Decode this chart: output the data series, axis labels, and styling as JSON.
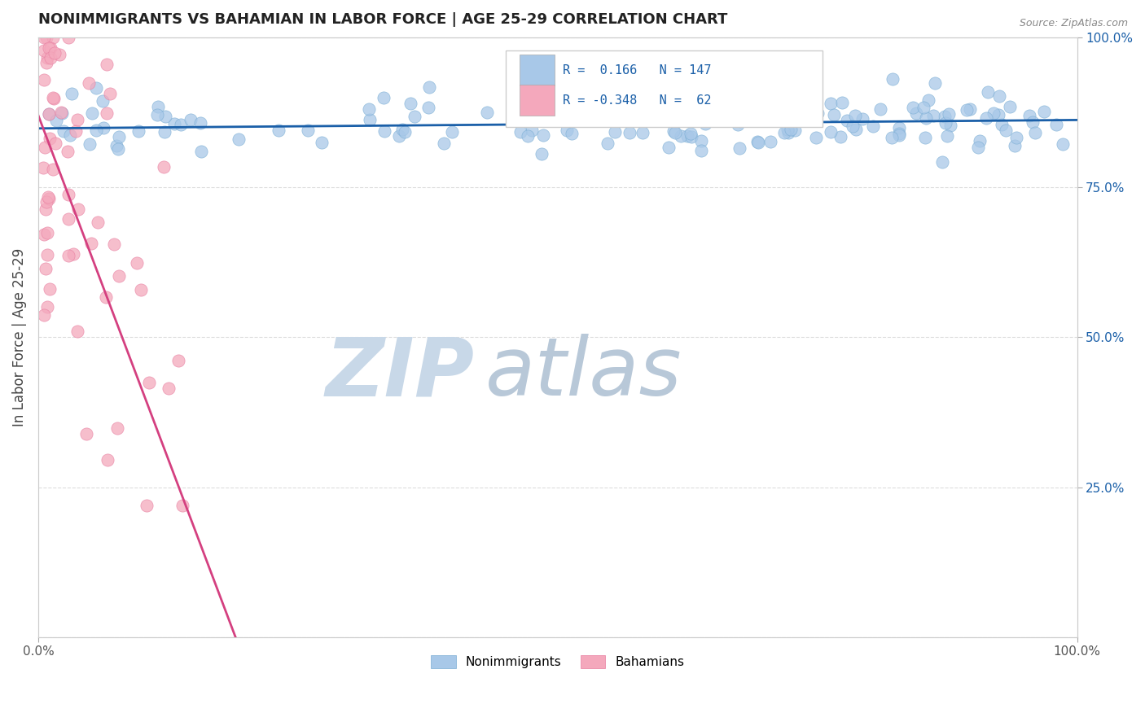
{
  "title": "NONIMMIGRANTS VS BAHAMIAN IN LABOR FORCE | AGE 25-29 CORRELATION CHART",
  "source_text": "Source: ZipAtlas.com",
  "ylabel": "In Labor Force | Age 25-29",
  "xlim": [
    0,
    1
  ],
  "ylim": [
    0,
    1
  ],
  "ytick_labels_right": [
    "25.0%",
    "50.0%",
    "75.0%",
    "100.0%"
  ],
  "ytick_positions_right": [
    0.25,
    0.5,
    0.75,
    1.0
  ],
  "blue_dot_color": "#A8C8E8",
  "blue_dot_edge": "#7AADD4",
  "pink_dot_color": "#F4A8BC",
  "pink_dot_edge": "#E87EA0",
  "blue_line_color": "#1A5FA8",
  "pink_line_color": "#D44080",
  "pink_dash_color": "#E8A0B8",
  "background_color": "#FFFFFF",
  "grid_color": "#DDDDDD",
  "watermark_zip_color": "#C8D8E8",
  "watermark_atlas_color": "#B8C8D8",
  "legend_text_color": "#1A5FA8",
  "right_axis_color": "#1A5FA8",
  "title_color": "#222222",
  "source_color": "#888888"
}
